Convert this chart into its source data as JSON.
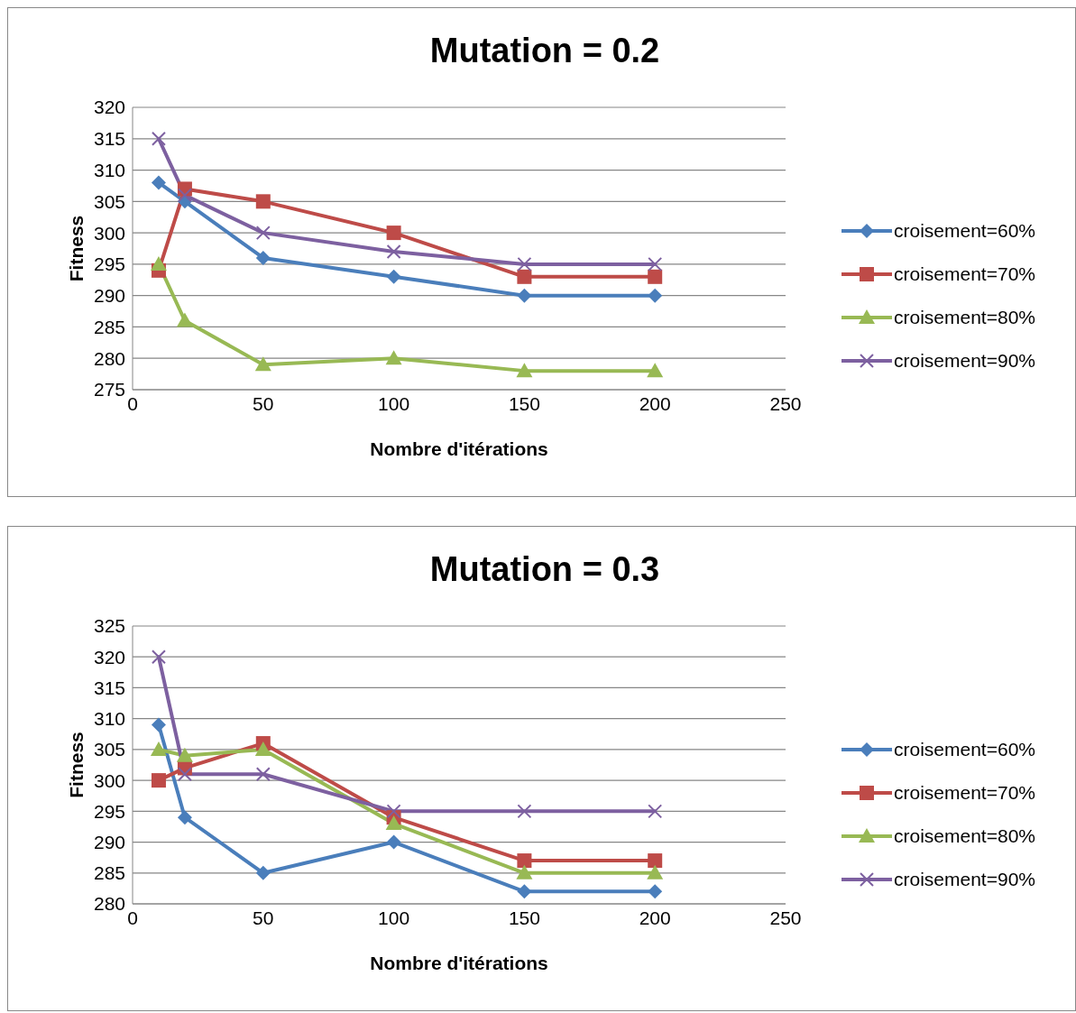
{
  "chart_data": [
    {
      "type": "line",
      "title": "Mutation = 0.2",
      "xlabel": "Nombre d'itérations",
      "ylabel": "Fitness",
      "x": [
        10,
        20,
        50,
        100,
        150,
        200
      ],
      "xlim": [
        0,
        250
      ],
      "xticks": [
        0,
        50,
        100,
        150,
        200,
        250
      ],
      "ylim": [
        275,
        320
      ],
      "yticks": [
        275,
        280,
        285,
        290,
        295,
        300,
        305,
        310,
        315,
        320
      ],
      "grid": "y",
      "legend": "right",
      "series": [
        {
          "name": "croisement=60%",
          "color": "#4a7ebb",
          "marker": "diamond",
          "values": [
            308,
            305,
            296,
            293,
            290,
            290
          ]
        },
        {
          "name": "croisement=70%",
          "color": "#be4b48",
          "marker": "square",
          "values": [
            294,
            307,
            305,
            300,
            293,
            293
          ]
        },
        {
          "name": "croisement=80%",
          "color": "#98b954",
          "marker": "triangle",
          "values": [
            295,
            286,
            279,
            280,
            278,
            278
          ]
        },
        {
          "name": "croisement=90%",
          "color": "#7d60a0",
          "marker": "cross",
          "values": [
            315,
            306,
            300,
            297,
            295,
            295
          ]
        }
      ]
    },
    {
      "type": "line",
      "title": "Mutation = 0.3",
      "xlabel": "Nombre d'itérations",
      "ylabel": "Fitness",
      "x": [
        10,
        20,
        50,
        100,
        150,
        200
      ],
      "xlim": [
        0,
        250
      ],
      "xticks": [
        0,
        50,
        100,
        150,
        200,
        250
      ],
      "ylim": [
        280,
        325
      ],
      "yticks": [
        280,
        285,
        290,
        295,
        300,
        305,
        310,
        315,
        320,
        325
      ],
      "grid": "y",
      "legend": "right",
      "series": [
        {
          "name": "croisement=60%",
          "color": "#4a7ebb",
          "marker": "diamond",
          "values": [
            309,
            294,
            285,
            290,
            282,
            282
          ]
        },
        {
          "name": "croisement=70%",
          "color": "#be4b48",
          "marker": "square",
          "values": [
            300,
            302,
            306,
            294,
            287,
            287
          ]
        },
        {
          "name": "croisement=80%",
          "color": "#98b954",
          "marker": "triangle",
          "values": [
            305,
            304,
            305,
            293,
            285,
            285
          ]
        },
        {
          "name": "croisement=90%",
          "color": "#7d60a0",
          "marker": "cross",
          "values": [
            320,
            301,
            301,
            295,
            295,
            295
          ]
        }
      ]
    }
  ]
}
